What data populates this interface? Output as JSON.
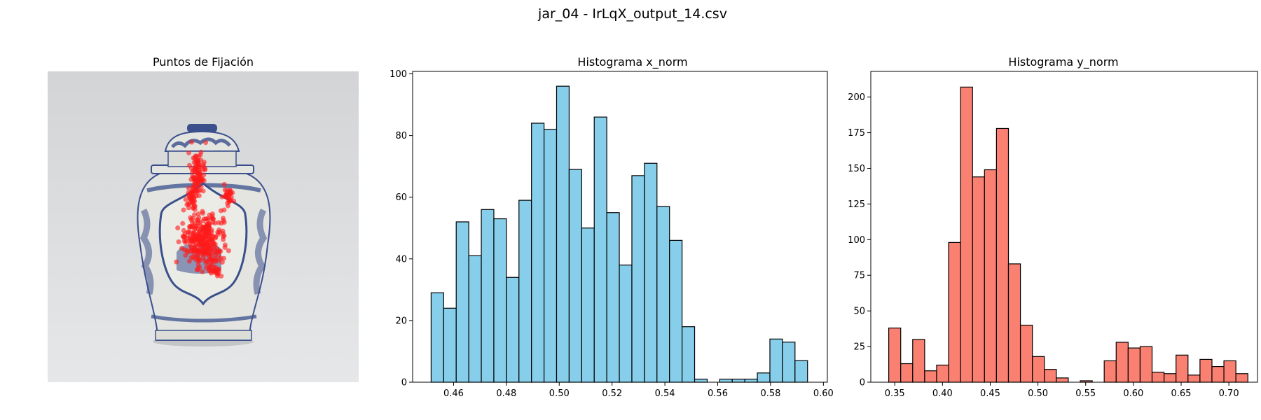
{
  "figure": {
    "suptitle": "jar_04 - IrLqX_output_14.csv"
  },
  "image_panel": {
    "title": "Puntos de Fijación",
    "subject": "blue-and-white porcelain ginger jar",
    "colors": {
      "background": "#d9dadc",
      "porcelain": "#e4e5e0",
      "pattern": "#3a4f8c",
      "fixation": "#ff1a1a"
    }
  },
  "chart_data": [
    {
      "type": "bar",
      "title": "Histograma x_norm",
      "xlabel": "",
      "ylabel": "",
      "color": "#87ceeb",
      "edgecolor": "#000000",
      "bin_start": 0.4515,
      "bin_width": 0.00475,
      "values": [
        29,
        24,
        52,
        41,
        56,
        53,
        34,
        59,
        84,
        82,
        96,
        69,
        50,
        86,
        55,
        38,
        67,
        71,
        57,
        46,
        18,
        1,
        0,
        1,
        1,
        1,
        3,
        14,
        13,
        7
      ],
      "xlim": [
        0.4445,
        0.6015
      ],
      "ylim": [
        0,
        100.8
      ],
      "xticks": [
        0.46,
        0.48,
        0.5,
        0.52,
        0.54,
        0.56,
        0.58,
        0.6
      ],
      "xtick_labels": [
        "0.46",
        "0.48",
        "0.50",
        "0.52",
        "0.54",
        "0.56",
        "0.58",
        "0.60"
      ],
      "yticks": [
        0,
        20,
        40,
        60,
        80,
        100
      ],
      "ytick_labels": [
        "0",
        "20",
        "40",
        "60",
        "80",
        "100"
      ]
    },
    {
      "type": "bar",
      "title": "Histograma y_norm",
      "xlabel": "",
      "ylabel": "",
      "color": "#fa8072",
      "edgecolor": "#000000",
      "bin_start": 0.3437,
      "bin_width": 0.01254,
      "values": [
        38,
        13,
        30,
        8,
        12,
        98,
        207,
        144,
        149,
        178,
        83,
        40,
        18,
        9,
        3,
        0,
        1,
        0,
        15,
        28,
        24,
        25,
        7,
        6,
        19,
        5,
        16,
        11,
        15,
        6
      ],
      "xlim": [
        0.3249,
        0.73
      ],
      "ylim": [
        0,
        218
      ],
      "xticks": [
        0.35,
        0.4,
        0.45,
        0.5,
        0.55,
        0.6,
        0.65,
        0.7
      ],
      "xtick_labels": [
        "0.35",
        "0.40",
        "0.45",
        "0.50",
        "0.55",
        "0.60",
        "0.65",
        "0.70"
      ],
      "yticks": [
        0,
        25,
        50,
        75,
        100,
        125,
        150,
        175,
        200
      ],
      "ytick_labels": [
        "0",
        "25",
        "50",
        "75",
        "100",
        "125",
        "150",
        "175",
        "200"
      ]
    }
  ]
}
